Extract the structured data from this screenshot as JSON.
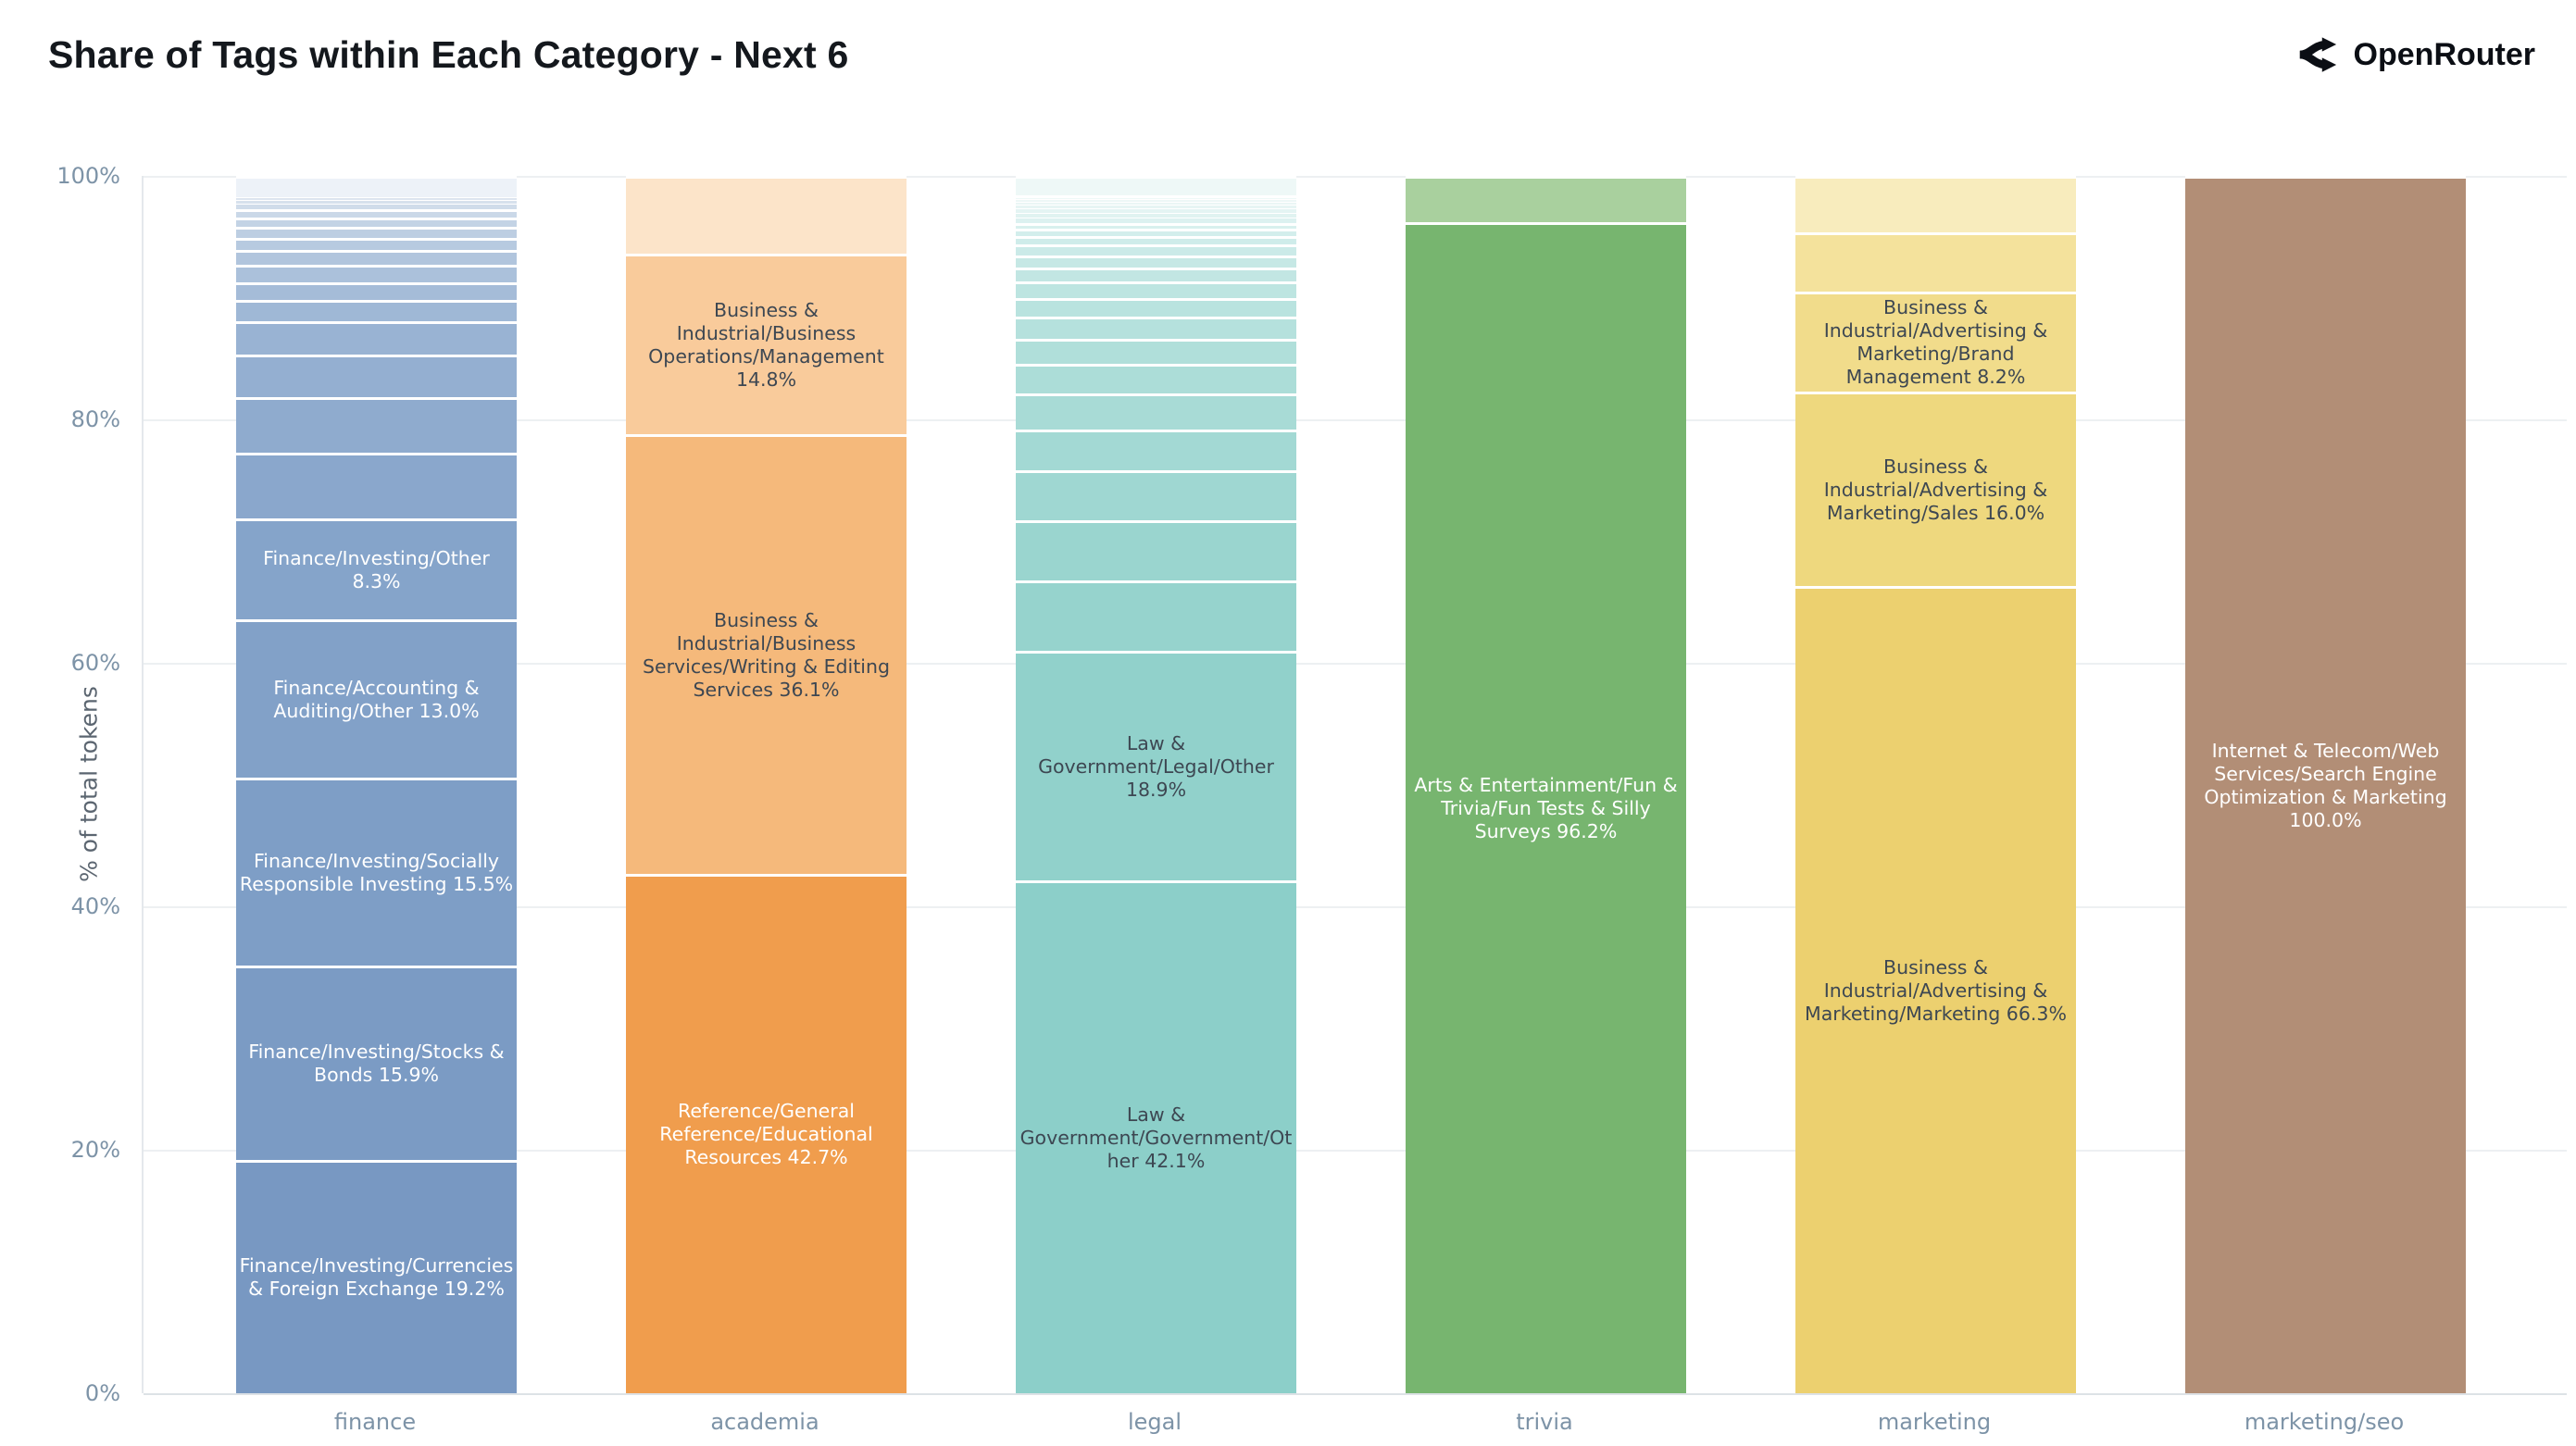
{
  "header": {
    "title": "Share of Tags within Each Category - Next 6",
    "brand": "OpenRouter"
  },
  "chart_data": {
    "type": "bar",
    "stacked": true,
    "orientation": "vertical",
    "title": "Share of Tags within Each Category - Next 6",
    "xlabel": "",
    "ylabel": "% of total tokens",
    "ylim": [
      0,
      100
    ],
    "grid": true,
    "legend": false,
    "yticks": [
      {
        "v": 0,
        "label": "0%"
      },
      {
        "v": 20,
        "label": "20%"
      },
      {
        "v": 40,
        "label": "40%"
      },
      {
        "v": 60,
        "label": "60%"
      },
      {
        "v": 80,
        "label": "80%"
      },
      {
        "v": 100,
        "label": "100%"
      }
    ],
    "categories": [
      "finance",
      "academia",
      "legal",
      "trivia",
      "marketing",
      "marketing/seo"
    ],
    "bars": [
      {
        "category": "finance",
        "segments": [
          {
            "value": 19.2,
            "label": "Finance/Investing/Currencies & Foreign Exchange 19.2%",
            "color": "#7898c2",
            "text": "#ffffff"
          },
          {
            "value": 15.9,
            "label": "Finance/Investing/Stocks & Bonds 15.9%",
            "color": "#7b9bc4",
            "text": "#ffffff"
          },
          {
            "value": 15.5,
            "label": "Finance/Investing/Socially Responsible Investing 15.5%",
            "color": "#7e9ec6",
            "text": "#ffffff"
          },
          {
            "value": 13.0,
            "label": "Finance/Accounting & Auditing/Other 13.0%",
            "color": "#82a1c8",
            "text": "#ffffff"
          },
          {
            "value": 8.3,
            "label": "Finance/Investing/Other 8.3%",
            "color": "#85a4ca",
            "text": "#ffffff"
          },
          {
            "value": 5.4,
            "label": "",
            "color": "#8aa7cc",
            "text": ""
          },
          {
            "value": 4.5,
            "label": "",
            "color": "#8fabce",
            "text": ""
          },
          {
            "value": 3.5,
            "label": "",
            "color": "#94afd1",
            "text": ""
          },
          {
            "value": 2.75,
            "label": "",
            "color": "#99b3d3",
            "text": ""
          },
          {
            "value": 1.75,
            "label": "",
            "color": "#9fb8d6",
            "text": ""
          },
          {
            "value": 1.5,
            "label": "",
            "color": "#a5bcd8",
            "text": ""
          },
          {
            "value": 1.4,
            "label": "",
            "color": "#abc1db",
            "text": ""
          },
          {
            "value": 1.25,
            "label": "",
            "color": "#b1c5dd",
            "text": ""
          },
          {
            "value": 1.0,
            "label": "",
            "color": "#b7cae0",
            "text": ""
          },
          {
            "value": 0.9,
            "label": "",
            "color": "#bdcee2",
            "text": ""
          },
          {
            "value": 0.75,
            "label": "",
            "color": "#c3d3e5",
            "text": ""
          },
          {
            "value": 0.7,
            "label": "",
            "color": "#cad8e8",
            "text": ""
          },
          {
            "value": 0.4,
            "label": "",
            "color": "#d0dcea",
            "text": ""
          },
          {
            "value": 0.3,
            "label": "",
            "color": "#d7e1ed",
            "text": ""
          },
          {
            "value": 0.3,
            "label": "",
            "color": "#dde5ef",
            "text": ""
          },
          {
            "value": 1.7,
            "label": "",
            "color": "#edf2f8",
            "text": ""
          }
        ]
      },
      {
        "category": "academia",
        "segments": [
          {
            "value": 42.7,
            "label": "Reference/General Reference/Educational Resources 42.7%",
            "color": "#f09d4d",
            "text": "#ffffff"
          },
          {
            "value": 36.1,
            "label": "Business & Industrial/Business Services/Writing & Editing Services 36.1%",
            "color": "#f5b97b",
            "text": "#3d4752"
          },
          {
            "value": 14.8,
            "label": "Business & Industrial/Business Operations/Management 14.8%",
            "color": "#f9cb9b",
            "text": "#3d4752"
          },
          {
            "value": 6.4,
            "label": "",
            "color": "#fce4c9",
            "text": ""
          }
        ]
      },
      {
        "category": "legal",
        "segments": [
          {
            "value": 42.1,
            "label": "Law & Government/Government/Other 42.1%",
            "color": "#8ccfc9",
            "text": "#3d4752"
          },
          {
            "value": 18.9,
            "label": "Law & Government/Legal/Other 18.9%",
            "color": "#91d1cb",
            "text": "#3d4752"
          },
          {
            "value": 5.8,
            "label": "",
            "color": "#96d3cd",
            "text": ""
          },
          {
            "value": 4.9,
            "label": "",
            "color": "#9ad5cf",
            "text": ""
          },
          {
            "value": 4.1,
            "label": "",
            "color": "#9fd7d2",
            "text": ""
          },
          {
            "value": 3.4,
            "label": "",
            "color": "#a3d9d4",
            "text": ""
          },
          {
            "value": 2.9,
            "label": "",
            "color": "#a8dbd6",
            "text": ""
          },
          {
            "value": 2.45,
            "label": "",
            "color": "#acddd8",
            "text": ""
          },
          {
            "value": 2.1,
            "label": "",
            "color": "#b0dfda",
            "text": ""
          },
          {
            "value": 1.8,
            "label": "",
            "color": "#b5e1dd",
            "text": ""
          },
          {
            "value": 1.55,
            "label": "",
            "color": "#b9e3df",
            "text": ""
          },
          {
            "value": 1.35,
            "label": "",
            "color": "#bde5e1",
            "text": ""
          },
          {
            "value": 1.15,
            "label": "",
            "color": "#c2e6e3",
            "text": ""
          },
          {
            "value": 1.0,
            "label": "",
            "color": "#c6e8e5",
            "text": ""
          },
          {
            "value": 0.85,
            "label": "",
            "color": "#cbeae8",
            "text": ""
          },
          {
            "value": 0.7,
            "label": "",
            "color": "#cfecea",
            "text": ""
          },
          {
            "value": 0.6,
            "label": "",
            "color": "#d3eeec",
            "text": ""
          },
          {
            "value": 0.5,
            "label": "",
            "color": "#d8f0ee",
            "text": ""
          },
          {
            "value": 0.45,
            "label": "",
            "color": "#dcf1f0",
            "text": ""
          },
          {
            "value": 0.4,
            "label": "",
            "color": "#e0f3f1",
            "text": ""
          },
          {
            "value": 0.35,
            "label": "",
            "color": "#e4f4f3",
            "text": ""
          },
          {
            "value": 0.3,
            "label": "",
            "color": "#e7f5f4",
            "text": ""
          },
          {
            "value": 0.25,
            "label": "",
            "color": "#eaf6f5",
            "text": ""
          },
          {
            "value": 0.2,
            "label": "",
            "color": "#edf7f6",
            "text": ""
          },
          {
            "value": 0.15,
            "label": "",
            "color": "#eff8f7",
            "text": ""
          },
          {
            "value": 0.12,
            "label": "",
            "color": "#f1f9f8",
            "text": ""
          },
          {
            "value": 0.08,
            "label": "",
            "color": "#f2faf9",
            "text": ""
          },
          {
            "value": 1.55,
            "label": "",
            "color": "#eef8f7",
            "text": ""
          }
        ]
      },
      {
        "category": "trivia",
        "segments": [
          {
            "value": 96.2,
            "label": "Arts & Entertainment/Fun & Trivia/Fun Tests & Silly Surveys 96.2%",
            "color": "#77b56f",
            "text": "#ffffff"
          },
          {
            "value": 3.8,
            "label": "",
            "color": "#a9d09e",
            "text": ""
          }
        ]
      },
      {
        "category": "marketing",
        "segments": [
          {
            "value": 66.3,
            "label": "Business & Industrial/Advertising & Marketing/Marketing 66.3%",
            "color": "#ecd06f",
            "text": "#3d4752"
          },
          {
            "value": 16.0,
            "label": "Business & Industrial/Advertising & Marketing/Sales 16.0%",
            "color": "#eed87e",
            "text": "#3d4752"
          },
          {
            "value": 8.2,
            "label": "Business & Industrial/Advertising & Marketing/Brand Management 8.2%",
            "color": "#f1dc8b",
            "text": "#3d4752"
          },
          {
            "value": 4.9,
            "label": "",
            "color": "#f4e29c",
            "text": ""
          },
          {
            "value": 4.6,
            "label": "",
            "color": "#f8ecbd",
            "text": ""
          }
        ]
      },
      {
        "category": "marketing/seo",
        "segments": [
          {
            "value": 100.0,
            "label": "Internet & Telecom/Web Services/Search Engine Optimization & Marketing 100.0%",
            "color": "#b28e76",
            "text": "#ffffff"
          }
        ]
      }
    ]
  }
}
